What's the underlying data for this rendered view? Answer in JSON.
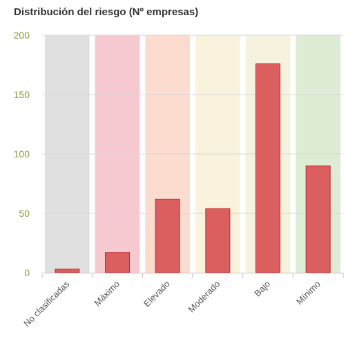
{
  "chart_data": {
    "type": "bar",
    "title": "Distribución del riesgo (Nº empresas)",
    "categories": [
      "No clasificadas",
      "Máximo",
      "Elevado",
      "Moderado",
      "Bajo",
      "Mínimo"
    ],
    "values": [
      3,
      17,
      62,
      54,
      176,
      90
    ],
    "ylim": [
      0,
      200
    ],
    "yticks": [
      "0",
      "50",
      "100",
      "150",
      "200"
    ],
    "grid": true,
    "legend": "none",
    "colors": {
      "band_backgrounds": [
        "#e0e0e0",
        "#f6c8d0",
        "#fddcd0",
        "#f9f3de",
        "#f5f2dd",
        "#dcecd5"
      ],
      "bar_fill": "#dc5f5f",
      "bar_stroke": "#c0282d",
      "gridline": "#d8d8d8",
      "y_tick_color": "#8a9a3e"
    }
  }
}
